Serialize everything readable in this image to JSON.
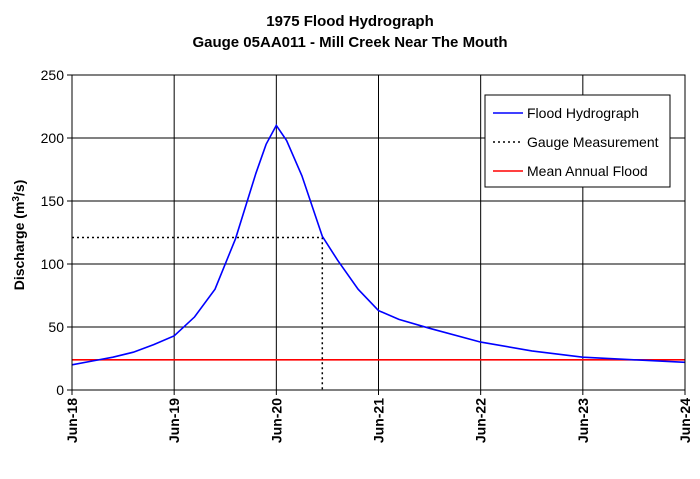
{
  "chart_data": {
    "type": "line",
    "title": "1975 Flood Hydrograph",
    "subtitle": "Gauge 05AA011 - Mill Creek Near The Mouth",
    "ylabel_main": "Discharge (m",
    "ylabel_sup": "3",
    "ylabel_tail": "/s)",
    "xlabel": "",
    "categories": [
      "Jun-18",
      "Jun-19",
      "Jun-20",
      "Jun-21",
      "Jun-22",
      "Jun-23",
      "Jun-24"
    ],
    "ylim": [
      0,
      250
    ],
    "yticks": [
      0,
      50,
      100,
      150,
      200,
      250
    ],
    "grid": true,
    "legend_position": "top-right",
    "series": [
      {
        "name": "Flood Hydrograph",
        "color": "#0000ff",
        "style": "solid",
        "x": [
          0,
          0.2,
          0.4,
          0.6,
          0.8,
          1.0,
          1.2,
          1.4,
          1.6,
          1.8,
          1.9,
          2.0,
          2.1,
          2.25,
          2.45,
          2.6,
          2.8,
          3.0,
          3.2,
          3.5,
          4.0,
          4.5,
          5.0,
          5.5,
          6.0
        ],
        "y": [
          20,
          23,
          26,
          30,
          36,
          43,
          58,
          80,
          120,
          172,
          195,
          210,
          198,
          170,
          122,
          103,
          80,
          63,
          56,
          49,
          38,
          31,
          26,
          24,
          22
        ]
      },
      {
        "name": "Gauge Measurement",
        "color": "#000000",
        "style": "dotted",
        "x": [
          0,
          2.45,
          2.45
        ],
        "y": [
          121,
          121,
          0
        ]
      },
      {
        "name": "Mean Annual Flood",
        "color": "#ff0000",
        "style": "solid",
        "x": [
          0,
          6
        ],
        "y": [
          24,
          24
        ]
      }
    ]
  }
}
